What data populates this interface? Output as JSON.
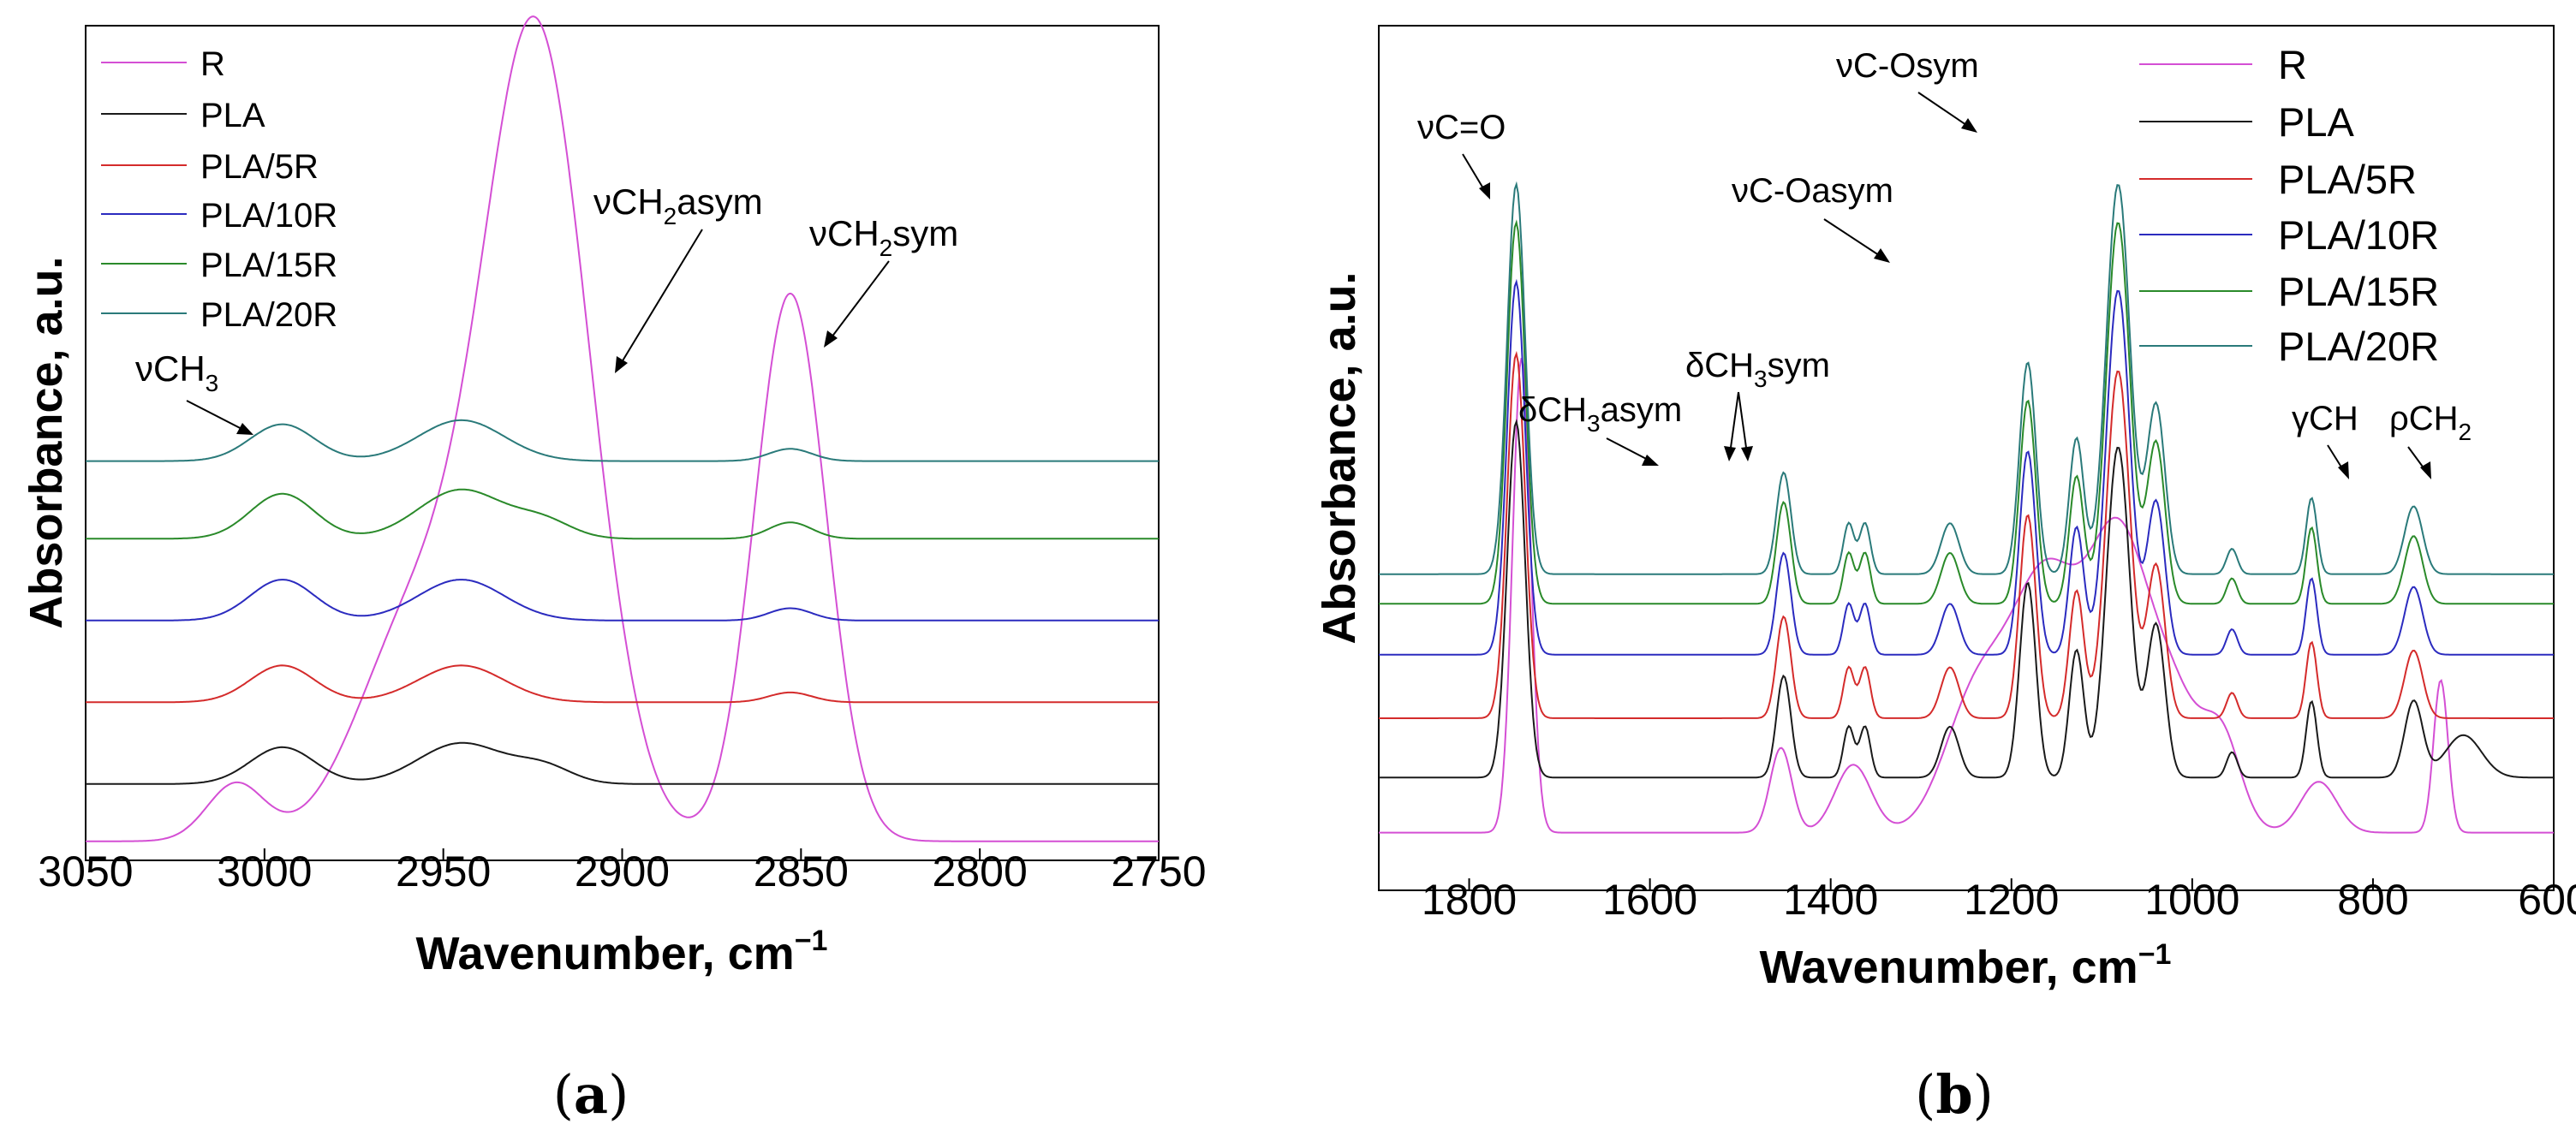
{
  "chart_data": [
    {
      "type": "line",
      "panel_label": "a",
      "xlabel": "Wavenumber, cm",
      "xlabel_sup": "−1",
      "ylabel": "Absorbance, a.u.",
      "xlim": [
        3050,
        2750
      ],
      "xticks": [
        "3050",
        "3000",
        "2950",
        "2900",
        "2850",
        "2800",
        "2750"
      ],
      "ylim": [
        0,
        10
      ],
      "legend": [
        "R",
        "PLA",
        "PLA/5R",
        "PLA/10R",
        "PLA/15R",
        "PLA/20R"
      ],
      "series": [
        {
          "name": "R",
          "color": "#d44fd4",
          "offset": 0.0,
          "peaks": [
            [
              3008,
              0.7,
              8
            ],
            [
              2958,
              2.6,
              16
            ],
            [
              2924,
              9.8,
              15
            ],
            [
              2853,
              6.7,
              10
            ]
          ],
          "base": 0.15
        },
        {
          "name": "PLA",
          "color": "#1a1a1a",
          "offset": 0.85,
          "peaks": [
            [
              2995,
              0.45,
              9
            ],
            [
              2945,
              0.5,
              12
            ],
            [
              2922,
              0.2,
              8
            ]
          ],
          "base": 0.0
        },
        {
          "name": "PLA/5R",
          "color": "#d42b2b",
          "offset": 1.85,
          "peaks": [
            [
              2995,
              0.45,
              9
            ],
            [
              2945,
              0.45,
              12
            ],
            [
              2853,
              0.12,
              6
            ]
          ],
          "base": 0.0
        },
        {
          "name": "PLA/10R",
          "color": "#2b2bbf",
          "offset": 2.85,
          "peaks": [
            [
              2995,
              0.5,
              9
            ],
            [
              2945,
              0.5,
              12
            ],
            [
              2853,
              0.15,
              6
            ]
          ],
          "base": 0.0
        },
        {
          "name": "PLA/15R",
          "color": "#2a8a2a",
          "offset": 3.85,
          "peaks": [
            [
              2995,
              0.55,
              9
            ],
            [
              2945,
              0.6,
              12
            ],
            [
              2922,
              0.2,
              8
            ],
            [
              2853,
              0.2,
              6
            ]
          ],
          "base": 0.0
        },
        {
          "name": "PLA/20R",
          "color": "#2a7a7a",
          "offset": 4.8,
          "peaks": [
            [
              2995,
              0.45,
              9
            ],
            [
              2945,
              0.5,
              12
            ],
            [
              2853,
              0.15,
              6
            ]
          ],
          "base": 0.0
        }
      ],
      "annotations": [
        {
          "text": "νCH",
          "sub": "3",
          "suffix": ""
        },
        {
          "text": "νCH",
          "sub": "2",
          "suffix": "asym"
        },
        {
          "text": "νCH",
          "sub": "2",
          "suffix": "sym"
        }
      ]
    },
    {
      "type": "line",
      "panel_label": "b",
      "xlabel": "Wavenumber, cm",
      "xlabel_sup": "−1",
      "ylabel": "Absorbance, a.u.",
      "xlim": [
        1900,
        600
      ],
      "xticks": [
        "1800",
        "1600",
        "1400",
        "1200",
        "1000",
        "800",
        "600"
      ],
      "ylim": [
        0,
        10
      ],
      "legend": [
        "R",
        "PLA",
        "PLA/5R",
        "PLA/10R",
        "PLA/15R",
        "PLA/20R"
      ],
      "series": [
        {
          "name": "R",
          "color": "#d44fd4",
          "offset": 0.0,
          "peaks": [
            [
              1742,
              5.6,
              10
            ],
            [
              1455,
              1.0,
              12
            ],
            [
              1375,
              0.8,
              20
            ],
            [
              1240,
              1.5,
              35
            ],
            [
              1160,
              3.0,
              40
            ],
            [
              1085,
              2.5,
              30
            ],
            [
              1030,
              1.8,
              40
            ],
            [
              965,
              0.8,
              20
            ],
            [
              860,
              0.6,
              20
            ],
            [
              725,
              1.8,
              8
            ]
          ],
          "base": 0.6
        },
        {
          "name": "PLA",
          "color": "#1a1a1a",
          "offset": 1.25,
          "peaks": [
            [
              1748,
              4.2,
              10
            ],
            [
              1452,
              1.2,
              8
            ],
            [
              1380,
              0.6,
              6
            ],
            [
              1362,
              0.6,
              6
            ],
            [
              1268,
              0.6,
              10
            ],
            [
              1182,
              2.3,
              9
            ],
            [
              1128,
              1.5,
              8
            ],
            [
              1082,
              3.9,
              13
            ],
            [
              1040,
              1.8,
              10
            ],
            [
              956,
              0.3,
              6
            ],
            [
              868,
              0.9,
              6
            ],
            [
              755,
              0.9,
              10
            ],
            [
              700,
              0.5,
              20
            ]
          ],
          "base": 0.0
        },
        {
          "name": "PLA/5R",
          "color": "#d42b2b",
          "offset": 1.95,
          "peaks": [
            [
              1748,
              4.3,
              10
            ],
            [
              1452,
              1.2,
              8
            ],
            [
              1380,
              0.6,
              6
            ],
            [
              1362,
              0.6,
              6
            ],
            [
              1268,
              0.6,
              10
            ],
            [
              1182,
              2.4,
              9
            ],
            [
              1128,
              1.5,
              8
            ],
            [
              1082,
              4.1,
              13
            ],
            [
              1040,
              1.8,
              10
            ],
            [
              956,
              0.3,
              6
            ],
            [
              868,
              0.9,
              6
            ],
            [
              755,
              0.8,
              10
            ]
          ],
          "base": 0.0
        },
        {
          "name": "PLA/10R",
          "color": "#2b2bbf",
          "offset": 2.7,
          "peaks": [
            [
              1748,
              4.4,
              10
            ],
            [
              1452,
              1.2,
              8
            ],
            [
              1380,
              0.6,
              6
            ],
            [
              1362,
              0.6,
              6
            ],
            [
              1268,
              0.6,
              10
            ],
            [
              1182,
              2.4,
              9
            ],
            [
              1128,
              1.5,
              8
            ],
            [
              1082,
              4.3,
              13
            ],
            [
              1040,
              1.8,
              10
            ],
            [
              956,
              0.3,
              6
            ],
            [
              868,
              0.9,
              6
            ],
            [
              755,
              0.8,
              10
            ]
          ],
          "base": 0.0
        },
        {
          "name": "PLA/15R",
          "color": "#2a8a2a",
          "offset": 3.3,
          "peaks": [
            [
              1748,
              4.5,
              10
            ],
            [
              1452,
              1.2,
              8
            ],
            [
              1380,
              0.6,
              6
            ],
            [
              1362,
              0.6,
              6
            ],
            [
              1268,
              0.6,
              10
            ],
            [
              1182,
              2.4,
              9
            ],
            [
              1128,
              1.5,
              8
            ],
            [
              1082,
              4.5,
              13
            ],
            [
              1040,
              1.9,
              10
            ],
            [
              956,
              0.3,
              6
            ],
            [
              868,
              0.9,
              6
            ],
            [
              755,
              0.8,
              10
            ]
          ],
          "base": 0.0
        },
        {
          "name": "PLA/20R",
          "color": "#2a7a7a",
          "offset": 3.65,
          "peaks": [
            [
              1748,
              4.6,
              10
            ],
            [
              1452,
              1.2,
              8
            ],
            [
              1380,
              0.6,
              6
            ],
            [
              1362,
              0.6,
              6
            ],
            [
              1268,
              0.6,
              10
            ],
            [
              1182,
              2.5,
              9
            ],
            [
              1128,
              1.6,
              8
            ],
            [
              1082,
              4.6,
              13
            ],
            [
              1040,
              2.0,
              10
            ],
            [
              956,
              0.3,
              6
            ],
            [
              868,
              0.9,
              6
            ],
            [
              755,
              0.8,
              10
            ]
          ],
          "base": 0.0
        }
      ],
      "annotations": [
        {
          "text": "νC=O",
          "sub": "",
          "suffix": ""
        },
        {
          "text": "δCH",
          "sub": "3",
          "suffix": "asym"
        },
        {
          "text": "δCH",
          "sub": "3",
          "suffix": "sym"
        },
        {
          "text": "νC-Oasym",
          "sub": "",
          "suffix": ""
        },
        {
          "text": "νC-Osym",
          "sub": "",
          "suffix": ""
        },
        {
          "text": "γCH",
          "sub": "",
          "suffix": ""
        },
        {
          "text": "ρCH",
          "sub": "2",
          "suffix": ""
        }
      ]
    }
  ]
}
